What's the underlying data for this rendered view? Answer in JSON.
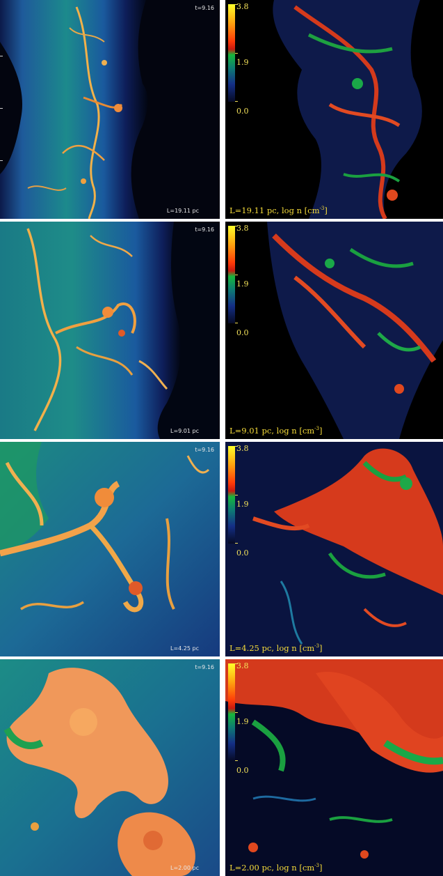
{
  "panels": [
    {
      "left_time": "t=9.16",
      "left_scale": "L=19.11 pc",
      "colorbar": {
        "top": "3.8",
        "mid": "1.9",
        "bottom": "0.0"
      },
      "caption_prefix": "L=19.11 pc, log n [cm",
      "caption_exp": "-3",
      "caption_suffix": "]"
    },
    {
      "left_time": "t=9.16",
      "left_scale": "L=9.01 pc",
      "colorbar": {
        "top": "3.8",
        "mid": "1.9",
        "bottom": "0.0"
      },
      "caption_prefix": "L=9.01 pc, log n [cm",
      "caption_exp": "-3",
      "caption_suffix": "]"
    },
    {
      "left_time": "t=9.16",
      "left_scale": "L=4.25 pc",
      "colorbar": {
        "top": "3.8",
        "mid": "1.9",
        "bottom": "0.0"
      },
      "caption_prefix": "L=4.25 pc, log n [cm",
      "caption_exp": "-3",
      "caption_suffix": "]"
    },
    {
      "left_time": "t=9.16",
      "left_scale": "L=2.00 pc",
      "colorbar": {
        "top": "3.8",
        "mid": "1.9",
        "bottom": "0.0"
      },
      "caption_prefix": "L=2.00 pc, log n [cm",
      "caption_exp": "-3",
      "caption_suffix": "]"
    }
  ]
}
